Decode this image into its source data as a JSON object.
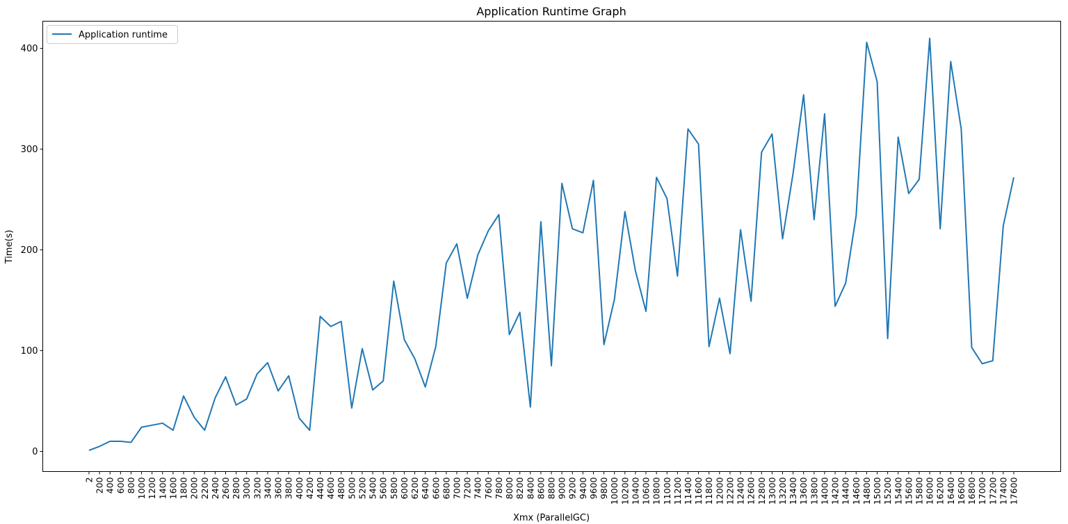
{
  "chart_data": {
    "type": "line",
    "title": "Application Runtime Graph",
    "xlabel": "Xmx (ParallelGC)",
    "ylabel": "Time(s)",
    "ylim": [
      -20,
      427
    ],
    "yticks": [
      0,
      100,
      200,
      300,
      400
    ],
    "grid": false,
    "legend_position": "top-left",
    "categories": [
      "2",
      "200",
      "400",
      "600",
      "800",
      "1000",
      "1200",
      "1400",
      "1600",
      "1800",
      "2000",
      "2200",
      "2400",
      "2600",
      "2800",
      "3000",
      "3200",
      "3400",
      "3600",
      "3800",
      "4000",
      "4200",
      "4400",
      "4600",
      "4800",
      "5000",
      "5200",
      "5400",
      "5600",
      "5800",
      "6000",
      "6200",
      "6400",
      "6600",
      "6800",
      "7000",
      "7200",
      "7400",
      "7600",
      "7800",
      "8000",
      "8200",
      "8400",
      "8600",
      "8800",
      "9000",
      "9200",
      "9400",
      "9600",
      "9800",
      "10000",
      "10200",
      "10400",
      "10600",
      "10800",
      "11000",
      "11200",
      "11400",
      "11600",
      "11800",
      "12000",
      "12200",
      "12400",
      "12600",
      "12800",
      "13000",
      "13200",
      "13400",
      "13600",
      "13800",
      "14000",
      "14200",
      "14400",
      "14600",
      "14800",
      "15000",
      "15200",
      "15400",
      "15600",
      "15800",
      "16000",
      "16200",
      "16400",
      "16600",
      "16800",
      "17000",
      "17200",
      "17400",
      "17600"
    ],
    "series": [
      {
        "name": "Application runtime",
        "color": "#1f77b4",
        "values": [
          1,
          5,
          10,
          10,
          9,
          24,
          26,
          28,
          21,
          55,
          34,
          21,
          53,
          74,
          46,
          52,
          77,
          88,
          60,
          75,
          33,
          21,
          134,
          124,
          129,
          43,
          102,
          61,
          70,
          169,
          111,
          92,
          64,
          104,
          187,
          206,
          152,
          195,
          219,
          235,
          116,
          138,
          44,
          228,
          85,
          266,
          221,
          217,
          269,
          106,
          151,
          238,
          179,
          139,
          272,
          251,
          174,
          320,
          305,
          104,
          152,
          97,
          220,
          149,
          297,
          315,
          211,
          276,
          354,
          230,
          335,
          144,
          167,
          234,
          406,
          367,
          112,
          312,
          256,
          270,
          410,
          221,
          387,
          320,
          103,
          87,
          90,
          224,
          272
        ]
      }
    ]
  }
}
